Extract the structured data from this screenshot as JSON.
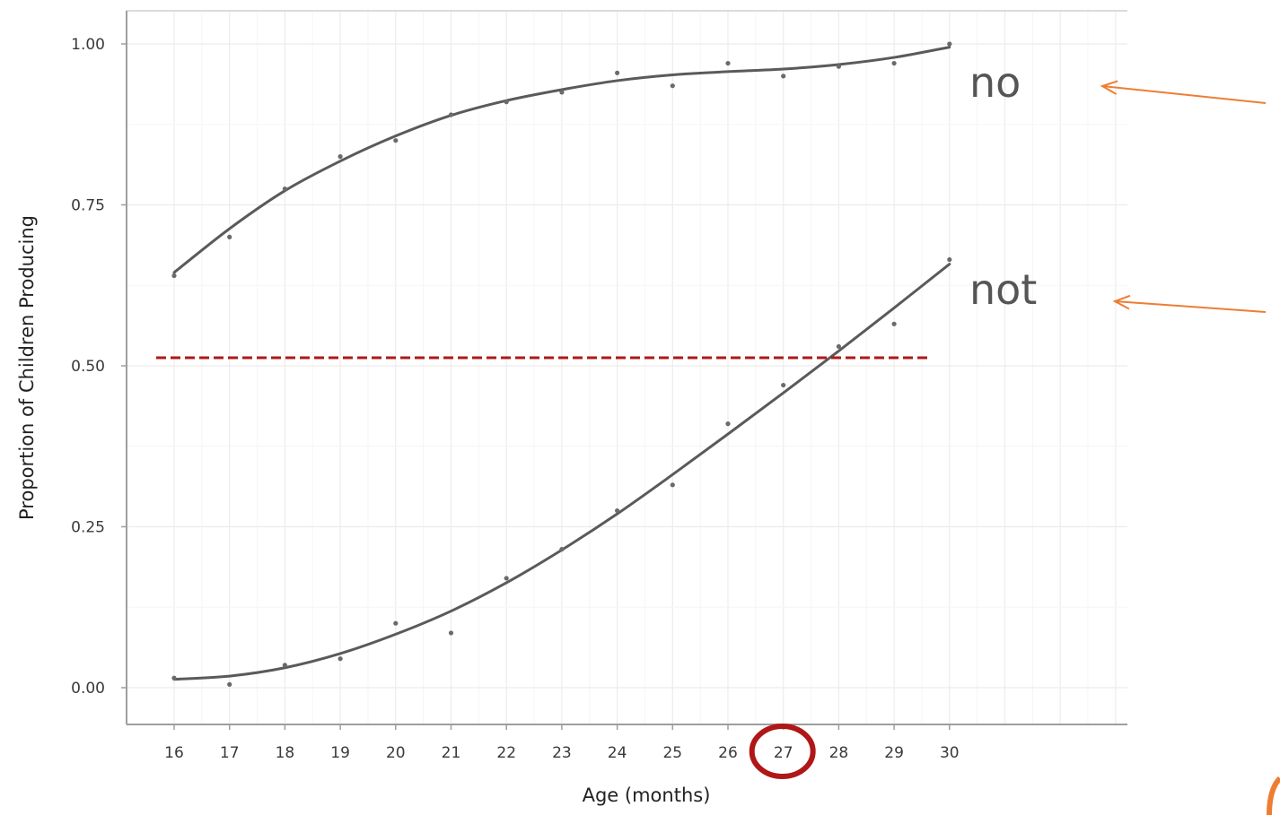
{
  "chart_data": {
    "type": "line",
    "xlabel": "Age (months)",
    "ylabel": "Proportion of Children Producing",
    "x": [
      16,
      17,
      18,
      19,
      20,
      21,
      22,
      23,
      24,
      25,
      26,
      27,
      28,
      29,
      30
    ],
    "xticks": [
      "16",
      "17",
      "18",
      "19",
      "20",
      "21",
      "22",
      "23",
      "24",
      "25",
      "26",
      "27",
      "28",
      "29",
      "30"
    ],
    "yticks": [
      "0.00",
      "0.25",
      "0.50",
      "0.75",
      "1.00"
    ],
    "ylim": [
      -0.06,
      1.05
    ],
    "grid": true,
    "series": [
      {
        "name": "no",
        "points": [
          0.64,
          0.7,
          0.775,
          0.825,
          0.85,
          0.89,
          0.91,
          0.925,
          0.955,
          0.935,
          0.97,
          0.95,
          0.965,
          0.97,
          1.0
        ],
        "fit": [
          0.645,
          0.713,
          0.772,
          0.818,
          0.857,
          0.889,
          0.912,
          0.929,
          0.943,
          0.952,
          0.957,
          0.961,
          0.968,
          0.979,
          0.995
        ]
      },
      {
        "name": "not",
        "points": [
          0.015,
          0.005,
          0.035,
          0.045,
          0.1,
          0.085,
          0.17,
          0.215,
          0.275,
          0.315,
          0.41,
          0.47,
          0.53,
          0.565,
          0.665
        ],
        "fit": [
          0.013,
          0.018,
          0.031,
          0.053,
          0.083,
          0.119,
          0.163,
          0.214,
          0.27,
          0.331,
          0.394,
          0.458,
          0.523,
          0.59,
          0.658
        ]
      }
    ],
    "annotations": {
      "reference_line": {
        "y": 0.5,
        "x_start": 16,
        "x_end": 29.65,
        "color": "#b01717",
        "style": "dashed"
      },
      "highlighted_tick": {
        "value": "27",
        "color": "#b01717",
        "marker": "circle"
      },
      "arrows": [
        {
          "points_to": "no",
          "color": "#ee7d32"
        },
        {
          "points_to": "not",
          "color": "#ee7d32"
        }
      ]
    },
    "colors": {
      "fit_line": "#5a5a5a",
      "points": "#6a6a6a",
      "grid": "#ececec",
      "axis": "#9e9e9e",
      "series_label": "#555555",
      "arrow": "#ee7d32",
      "highlight": "#b01717"
    }
  }
}
